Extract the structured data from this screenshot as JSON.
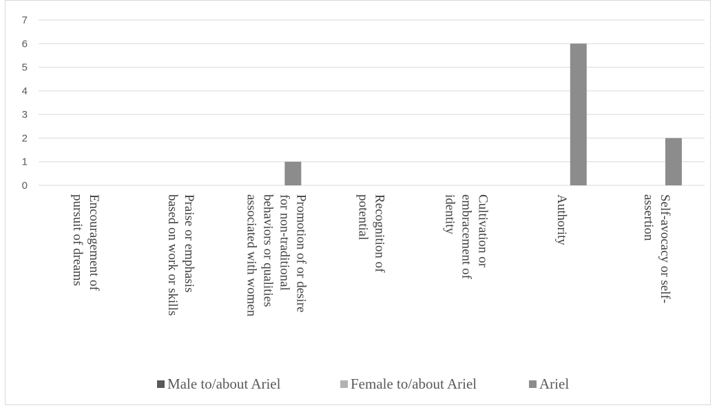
{
  "chart_data": {
    "type": "bar",
    "categories": [
      [
        "Encouragement of",
        "pursuit of dreams"
      ],
      [
        "Praise or emphasis",
        "based on work or skills"
      ],
      [
        "Promotion of or desire",
        "for non-traditional",
        "behaviors or qualities",
        "associated with women"
      ],
      [
        "Recognition of",
        "potential"
      ],
      [
        "Cultivation or",
        "embracement of",
        "identity"
      ],
      [
        "Authority"
      ],
      [
        "Self-avocacy or self-",
        "assertion"
      ]
    ],
    "series": [
      {
        "name": "Male to/about Ariel",
        "color": "#595959",
        "values": [
          0,
          0,
          0,
          0,
          0,
          0,
          0
        ]
      },
      {
        "name": "Female to/about Ariel",
        "color": "#b3b3b3",
        "values": [
          0,
          0,
          0,
          0,
          0,
          0,
          0
        ]
      },
      {
        "name": "Ariel",
        "color": "#8c8c8c",
        "values": [
          0,
          0,
          1,
          0,
          0,
          6,
          2
        ]
      }
    ],
    "ylim": [
      0,
      7
    ],
    "yticks": [
      0,
      1,
      2,
      3,
      4,
      5,
      6,
      7
    ],
    "grid": true,
    "legend": "bottom"
  }
}
